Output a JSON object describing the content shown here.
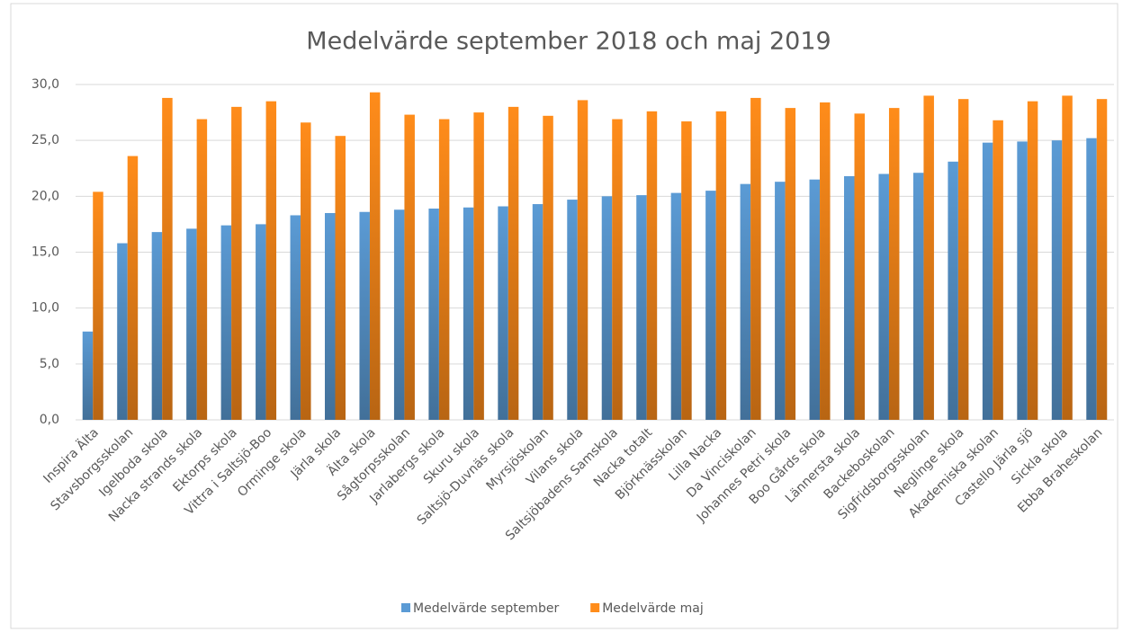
{
  "chart_data": {
    "type": "bar",
    "title": "Medelvärde september 2018 och maj 2019",
    "categories": [
      "Inspira Älta",
      "Stavsborgsskolan",
      "Igelboda skola",
      "Nacka strands skola",
      "Ektorps skola",
      "Vittra i Saltsjö-Boo",
      "Orminge skola",
      "Järla skola",
      "Älta skola",
      "Sågtorpsskolan",
      "Jarlabergs skola",
      "Skuru skola",
      "Saltsjö-Duvnäs skola",
      "Myrsjöskolan",
      "Vilans skola",
      "Saltsjöbadens Samskola",
      "Nacka totalt",
      "Björknässkolan",
      "Lilla Nacka",
      "Da Vinciskolan",
      "Johannes Petri skola",
      "Boo Gårds skola",
      "Lännersta skola",
      "Backeboskolan",
      "Sigfridsborgsskolan",
      "Neglinge skola",
      "Akademiska skolan",
      "Castello Järla sjö",
      "Sickla skola",
      "Ebba Braheskolan"
    ],
    "series": [
      {
        "name": "Medelvärde september",
        "color": "#5b9bd5",
        "values": [
          7.9,
          15.8,
          16.8,
          17.1,
          17.4,
          17.5,
          18.3,
          18.5,
          18.6,
          18.8,
          18.9,
          19.0,
          19.1,
          19.3,
          19.7,
          20.0,
          20.1,
          20.3,
          20.5,
          21.1,
          21.3,
          21.5,
          21.8,
          22.0,
          22.1,
          23.1,
          24.8,
          24.9,
          25.0,
          25.2
        ]
      },
      {
        "name": "Medelvärde maj",
        "color": "#ff8c1a",
        "values": [
          20.4,
          23.6,
          28.8,
          26.9,
          28.0,
          28.5,
          26.6,
          25.4,
          29.3,
          27.3,
          26.9,
          27.5,
          28.0,
          27.2,
          28.6,
          26.9,
          27.6,
          26.7,
          27.6,
          28.8,
          27.9,
          28.4,
          27.4,
          27.9,
          29.0,
          28.7,
          26.8,
          28.5,
          29.0,
          28.7
        ]
      }
    ],
    "ylim": [
      0,
      30
    ],
    "yticks": [
      {
        "value": 0,
        "label": "0,0"
      },
      {
        "value": 5,
        "label": "5,0"
      },
      {
        "value": 10,
        "label": "10,0"
      },
      {
        "value": 15,
        "label": "15,0"
      },
      {
        "value": 20,
        "label": "20,0"
      },
      {
        "value": 25,
        "label": "25,0"
      },
      {
        "value": 30,
        "label": "30,0"
      }
    ],
    "grid": true,
    "legend": "bottom"
  }
}
